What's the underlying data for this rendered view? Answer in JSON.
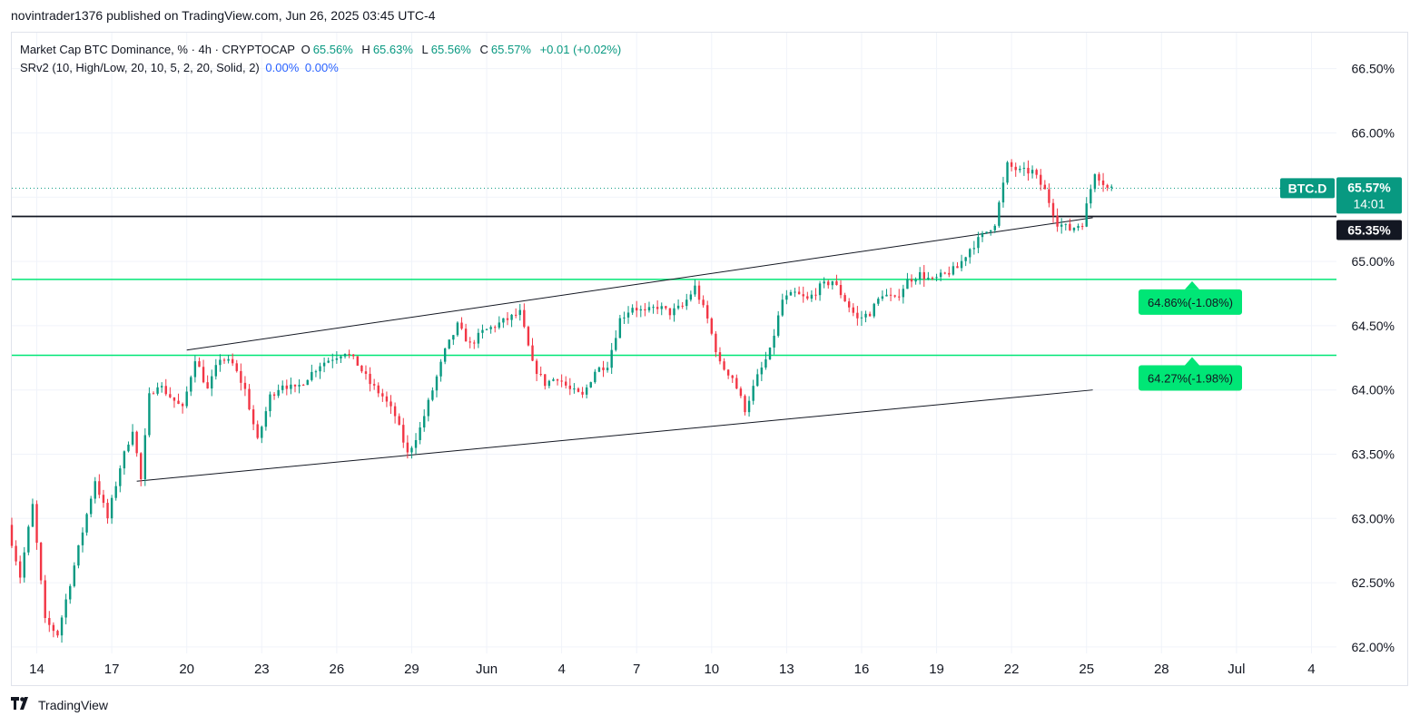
{
  "header": {
    "publish_line": "novintrader1376 published on TradingView.com, Jun 26, 2025 03:45 UTC-4"
  },
  "legend": {
    "symbol": "Market Cap BTC Dominance, % · 4h · CRYPTOCAP",
    "open_label": "O",
    "open_value": "65.56%",
    "high_label": "H",
    "high_value": "65.63%",
    "low_label": "L",
    "low_value": "65.56%",
    "close_label": "C",
    "close_value": "65.57%",
    "change": "+0.01 (+0.02%)",
    "indicator": "SRv2 (10, High/Low, 20, 10, 5, 2, 20, Solid, 2)",
    "indicator_value_1": "0.00%",
    "indicator_value_2": "0.00%"
  },
  "footer": {
    "brand": "TradingView",
    "logo_icon": "tradingview-logo-icon"
  },
  "colors": {
    "up": "#089981",
    "down": "#f23645",
    "sr_line": "#00e676",
    "price_badge": "#089981",
    "black_line": "#131722",
    "grid": "#f0f3fa"
  },
  "chart_data": {
    "type": "candlestick",
    "timeframe": "4h",
    "y_axis": {
      "ticks": [
        "62.00%",
        "62.50%",
        "63.00%",
        "63.50%",
        "64.00%",
        "64.50%",
        "65.00%",
        "65.50%",
        "66.00%",
        "66.50%"
      ],
      "ylim": [
        61.95,
        66.78
      ]
    },
    "x_axis": {
      "ticks": [
        "14",
        "17",
        "20",
        "23",
        "26",
        "29",
        "Jun",
        "4",
        "7",
        "10",
        "13",
        "16",
        "19",
        "22",
        "25",
        "28",
        "Jul",
        "4"
      ],
      "start": "2025-05-13",
      "end": "2025-07-05"
    },
    "last_price": {
      "symbol": "BTC.D",
      "value": "65.57%",
      "countdown": "14:01"
    },
    "black_level": {
      "value": 65.35,
      "label": "65.35%"
    },
    "support_levels": [
      {
        "value": 64.86,
        "label": "64.86%(-1.08%)"
      },
      {
        "value": 64.27,
        "label": "64.27%(-1.98%)"
      }
    ],
    "channel": {
      "upper": [
        {
          "date": "2025-05-20",
          "value": 64.31
        },
        {
          "date": "2025-06-25 06:00",
          "value": 65.34
        }
      ],
      "lower": [
        {
          "date": "2025-05-18",
          "value": 63.29
        },
        {
          "date": "2025-06-25 06:00",
          "value": 64.0
        }
      ]
    },
    "price_path": [
      {
        "date": "2025-05-13",
        "value": 62.95
      },
      {
        "date": "2025-05-13 12:00",
        "value": 62.55
      },
      {
        "date": "2025-05-14",
        "value": 63.1
      },
      {
        "date": "2025-05-14 12:00",
        "value": 62.2
      },
      {
        "date": "2025-05-15",
        "value": 62.1
      },
      {
        "date": "2025-05-15 12:00",
        "value": 62.5
      },
      {
        "date": "2025-05-16",
        "value": 62.9
      },
      {
        "date": "2025-05-16 12:00",
        "value": 63.3
      },
      {
        "date": "2025-05-17",
        "value": 63.0
      },
      {
        "date": "2025-05-17 12:00",
        "value": 63.4
      },
      {
        "date": "2025-05-18",
        "value": 63.7
      },
      {
        "date": "2025-05-18 08:00",
        "value": 63.3
      },
      {
        "date": "2025-05-18 16:00",
        "value": 63.95
      },
      {
        "date": "2025-05-19",
        "value": 64.05
      },
      {
        "date": "2025-05-19 12:00",
        "value": 63.95
      },
      {
        "date": "2025-05-20",
        "value": 63.85
      },
      {
        "date": "2025-05-20 12:00",
        "value": 64.25
      },
      {
        "date": "2025-05-21",
        "value": 64.0
      },
      {
        "date": "2025-05-21 12:00",
        "value": 64.25
      },
      {
        "date": "2025-05-22",
        "value": 64.2
      },
      {
        "date": "2025-05-22 12:00",
        "value": 64.0
      },
      {
        "date": "2025-05-23",
        "value": 63.6
      },
      {
        "date": "2025-05-23 12:00",
        "value": 63.95
      },
      {
        "date": "2025-05-24",
        "value": 64.05
      },
      {
        "date": "2025-05-24 12:00",
        "value": 64.0
      },
      {
        "date": "2025-05-25",
        "value": 64.1
      },
      {
        "date": "2025-05-25 12:00",
        "value": 64.2
      },
      {
        "date": "2025-05-26",
        "value": 64.25
      },
      {
        "date": "2025-05-26 12:00",
        "value": 64.3
      },
      {
        "date": "2025-05-27",
        "value": 64.2
      },
      {
        "date": "2025-05-27 12:00",
        "value": 64.05
      },
      {
        "date": "2025-05-28",
        "value": 63.95
      },
      {
        "date": "2025-05-28 12:00",
        "value": 63.8
      },
      {
        "date": "2025-05-29",
        "value": 63.5
      },
      {
        "date": "2025-05-29 12:00",
        "value": 63.7
      },
      {
        "date": "2025-05-30",
        "value": 64.0
      },
      {
        "date": "2025-05-30 12:00",
        "value": 64.3
      },
      {
        "date": "2025-05-31",
        "value": 64.5
      },
      {
        "date": "2025-05-31 12:00",
        "value": 64.35
      },
      {
        "date": "2025-06-01",
        "value": 64.45
      },
      {
        "date": "2025-06-01 12:00",
        "value": 64.5
      },
      {
        "date": "2025-06-02",
        "value": 64.55
      },
      {
        "date": "2025-06-02 12:00",
        "value": 64.6
      },
      {
        "date": "2025-06-03",
        "value": 64.2
      },
      {
        "date": "2025-06-03 12:00",
        "value": 64.05
      },
      {
        "date": "2025-06-04",
        "value": 64.1
      },
      {
        "date": "2025-06-04 12:00",
        "value": 64.0
      },
      {
        "date": "2025-06-05",
        "value": 63.95
      },
      {
        "date": "2025-06-05 12:00",
        "value": 64.15
      },
      {
        "date": "2025-06-06",
        "value": 64.2
      },
      {
        "date": "2025-06-06 12:00",
        "value": 64.55
      },
      {
        "date": "2025-06-07",
        "value": 64.65
      },
      {
        "date": "2025-06-07 12:00",
        "value": 64.6
      },
      {
        "date": "2025-06-08",
        "value": 64.65
      },
      {
        "date": "2025-06-08 12:00",
        "value": 64.6
      },
      {
        "date": "2025-06-09",
        "value": 64.65
      },
      {
        "date": "2025-06-09 12:00",
        "value": 64.8
      },
      {
        "date": "2025-06-10",
        "value": 64.55
      },
      {
        "date": "2025-06-10 12:00",
        "value": 64.2
      },
      {
        "date": "2025-06-11",
        "value": 64.1
      },
      {
        "date": "2025-06-11 12:00",
        "value": 63.85
      },
      {
        "date": "2025-06-12",
        "value": 64.1
      },
      {
        "date": "2025-06-12 12:00",
        "value": 64.3
      },
      {
        "date": "2025-06-13",
        "value": 64.7
      },
      {
        "date": "2025-06-13 12:00",
        "value": 64.75
      },
      {
        "date": "2025-06-14",
        "value": 64.7
      },
      {
        "date": "2025-06-14 12:00",
        "value": 64.8
      },
      {
        "date": "2025-06-15",
        "value": 64.85
      },
      {
        "date": "2025-06-15 12:00",
        "value": 64.7
      },
      {
        "date": "2025-06-16",
        "value": 64.55
      },
      {
        "date": "2025-06-16 12:00",
        "value": 64.6
      },
      {
        "date": "2025-06-17",
        "value": 64.75
      },
      {
        "date": "2025-06-17 12:00",
        "value": 64.7
      },
      {
        "date": "2025-06-18",
        "value": 64.85
      },
      {
        "date": "2025-06-18 12:00",
        "value": 64.9
      },
      {
        "date": "2025-06-19",
        "value": 64.85
      },
      {
        "date": "2025-06-19 12:00",
        "value": 64.9
      },
      {
        "date": "2025-06-20",
        "value": 64.95
      },
      {
        "date": "2025-06-20 12:00",
        "value": 65.1
      },
      {
        "date": "2025-06-21",
        "value": 65.2
      },
      {
        "date": "2025-06-21 12:00",
        "value": 65.3
      },
      {
        "date": "2025-06-22",
        "value": 65.75
      },
      {
        "date": "2025-06-22 12:00",
        "value": 65.7
      },
      {
        "date": "2025-06-23",
        "value": 65.7
      },
      {
        "date": "2025-06-23 12:00",
        "value": 65.55
      },
      {
        "date": "2025-06-24",
        "value": 65.3
      },
      {
        "date": "2025-06-24 12:00",
        "value": 65.25
      },
      {
        "date": "2025-06-25",
        "value": 65.3
      },
      {
        "date": "2025-06-25 12:00",
        "value": 65.7
      },
      {
        "date": "2025-06-26",
        "value": 65.57
      }
    ]
  }
}
